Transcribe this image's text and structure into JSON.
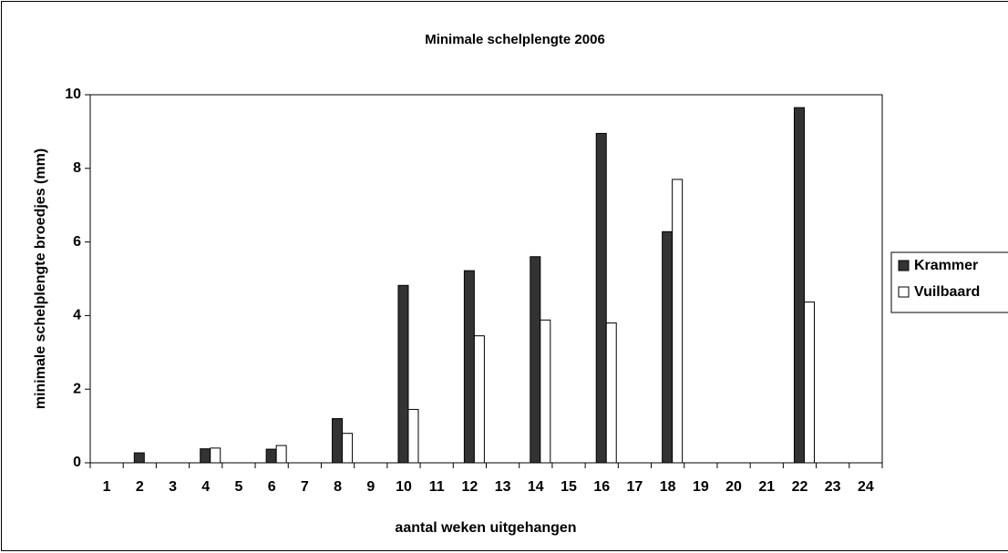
{
  "chart_data": {
    "type": "bar",
    "title": "Minimale schelplengte 2006",
    "x_label": "aantal weken uitgehangen",
    "y_label": "minimale schelplengte broedjes (mm)",
    "categories": [
      1,
      2,
      3,
      4,
      5,
      6,
      7,
      8,
      9,
      10,
      11,
      12,
      13,
      14,
      15,
      16,
      17,
      18,
      19,
      20,
      21,
      22,
      23,
      24
    ],
    "series": [
      {
        "name": "Krammer",
        "color": "#333333",
        "values": [
          null,
          0.27,
          null,
          0.38,
          null,
          0.37,
          null,
          1.2,
          null,
          4.82,
          null,
          5.22,
          null,
          5.6,
          null,
          8.95,
          null,
          6.28,
          null,
          null,
          null,
          9.65,
          null,
          null
        ]
      },
      {
        "name": "Vuilbaard",
        "color": "#ffffff",
        "values": [
          null,
          null,
          null,
          0.4,
          null,
          0.47,
          null,
          0.8,
          null,
          1.45,
          null,
          3.45,
          null,
          3.88,
          null,
          3.8,
          null,
          7.7,
          null,
          null,
          null,
          4.37,
          null,
          null
        ]
      }
    ],
    "ylim": [
      0,
      10
    ],
    "yticks": [
      0,
      2,
      4,
      6,
      8,
      10
    ],
    "grid": false,
    "legend": "right"
  }
}
